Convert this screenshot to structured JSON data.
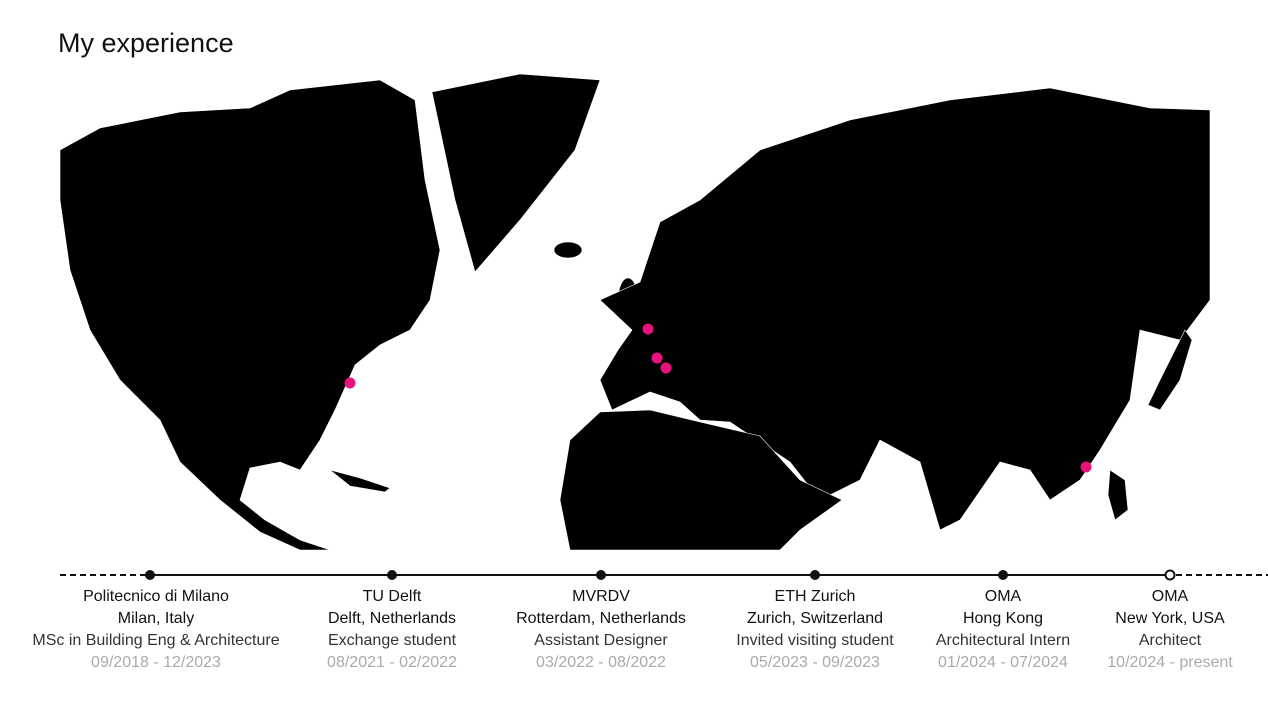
{
  "title": "My experience",
  "colors": {
    "marker": "#e8127c",
    "land": "#000000",
    "dates": "#aaaaaa"
  },
  "markers": [
    {
      "place": "New York, USA"
    },
    {
      "place": "Delft, Netherlands"
    },
    {
      "place": "Zurich, Switzerland"
    },
    {
      "place": "Milan, Italy"
    },
    {
      "place": "Hong Kong"
    }
  ],
  "timeline": [
    {
      "org": "Politecnico di Milano",
      "place": "Milan, Italy",
      "role": "MSc in Building Eng & Architecture",
      "dates": "09/2018 - 12/2023",
      "current": false
    },
    {
      "org": "TU Delft",
      "place": "Delft, Netherlands",
      "role": "Exchange student",
      "dates": "08/2021 - 02/2022",
      "current": false
    },
    {
      "org": "MVRDV",
      "place": "Rotterdam, Netherlands",
      "role": "Assistant Designer",
      "dates": "03/2022 - 08/2022",
      "current": false
    },
    {
      "org": "ETH Zurich",
      "place": "Zurich, Switzerland",
      "role": "Invited visiting student",
      "dates": "05/2023 - 09/2023",
      "current": false
    },
    {
      "org": "OMA",
      "place": "Hong Kong",
      "role": "Architectural Intern",
      "dates": "01/2024 - 07/2024",
      "current": false
    },
    {
      "org": "OMA",
      "place": "New York, USA",
      "role": "Architect",
      "dates": "10/2024 - present",
      "current": true
    }
  ]
}
